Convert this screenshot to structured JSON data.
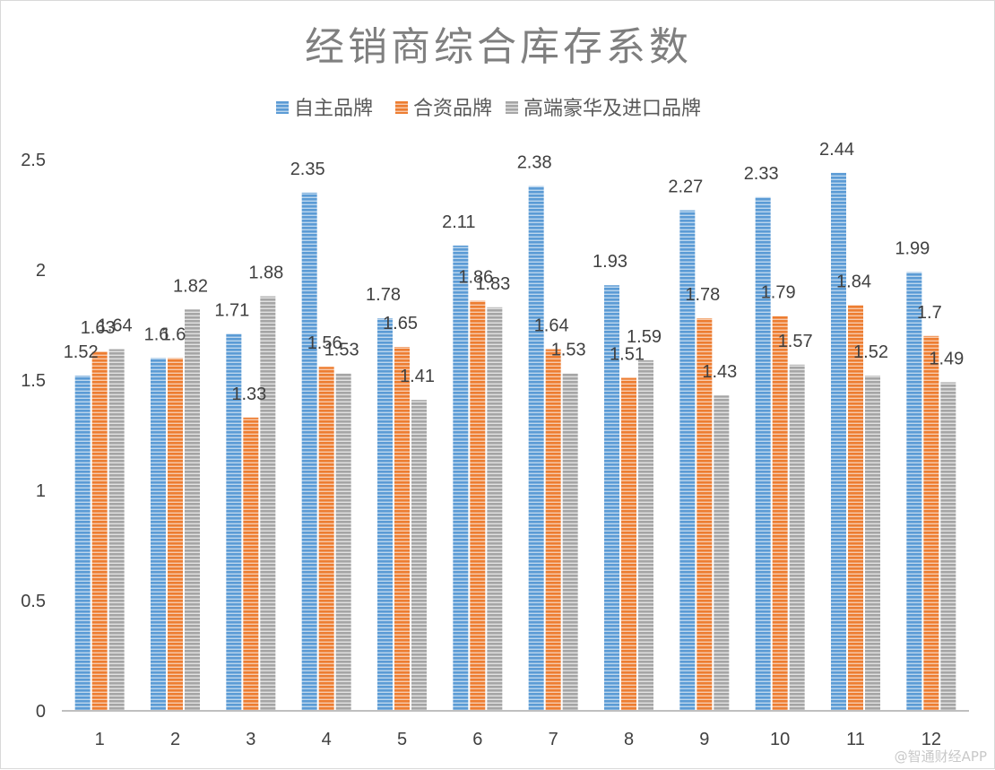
{
  "chart_data": {
    "type": "bar",
    "title": "经销商综合库存系数",
    "categories": [
      "1",
      "2",
      "3",
      "4",
      "5",
      "6",
      "7",
      "8",
      "9",
      "10",
      "11",
      "12"
    ],
    "series": [
      {
        "name": "自主品牌",
        "color": "#5b9bd5",
        "values": [
          1.52,
          1.6,
          1.71,
          2.35,
          1.78,
          2.11,
          2.38,
          1.93,
          2.27,
          2.33,
          2.44,
          1.99
        ]
      },
      {
        "name": "合资品牌",
        "color": "#ed7d31",
        "values": [
          1.63,
          1.6,
          1.33,
          1.56,
          1.65,
          1.86,
          1.64,
          1.51,
          1.78,
          1.79,
          1.84,
          1.7
        ]
      },
      {
        "name": "高端豪华及进口品牌",
        "color": "#a5a5a5",
        "values": [
          1.64,
          1.82,
          1.88,
          1.53,
          1.41,
          1.83,
          1.53,
          1.59,
          1.43,
          1.57,
          1.52,
          1.49
        ]
      }
    ],
    "ylim": [
      0,
      2.5
    ],
    "yticks": [
      "0",
      "0.5",
      "1",
      "1.5",
      "2",
      "2.5"
    ],
    "xlabel": "",
    "ylabel": "",
    "grid": false,
    "legend_position": "top",
    "data_labels": true
  },
  "watermark": "@智通财经APP"
}
